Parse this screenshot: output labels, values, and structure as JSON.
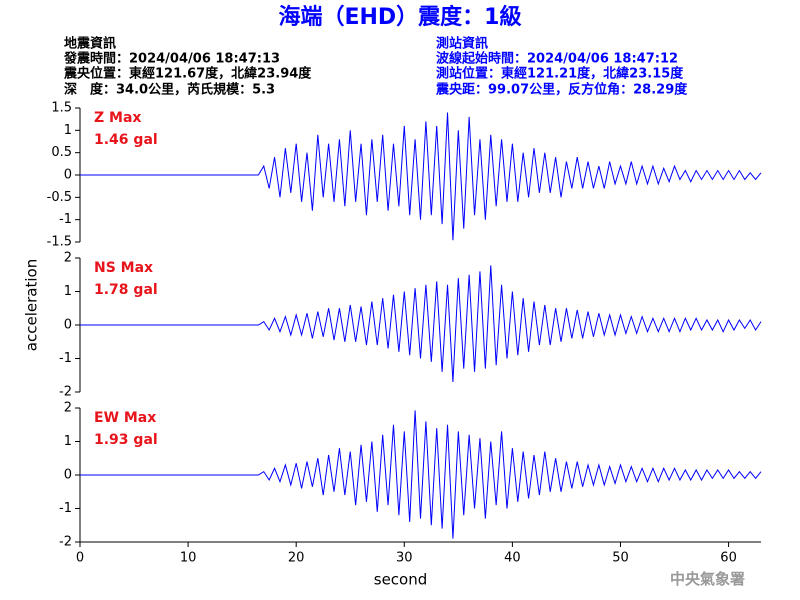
{
  "title": "海端（EHD）震度：1級",
  "event_info": {
    "heading": "地震資訊",
    "lines": [
      "發震時間：2024/04/06 18:47:13",
      "震央位置：東經121.67度，北緯23.94度",
      "深　度：34.0公里，芮氏規模：5.3"
    ]
  },
  "station_info": {
    "heading": "測站資訊",
    "lines": [
      "波線起始時間：2024/04/06 18:47:12",
      "測站位置：東經121.21度，北緯23.15度",
      "震央距：99.07公里，反方位角：28.29度"
    ]
  },
  "credit": "中央氣象署",
  "chart_data": [
    {
      "type": "line",
      "annotations": [
        "Z Max",
        "1.46 gal"
      ],
      "xlim": [
        0,
        63
      ],
      "ylim": [
        -1.5,
        1.5
      ],
      "yticks": [
        -1.5,
        -1,
        -0.5,
        0,
        0.5,
        1,
        1.5
      ],
      "x": [
        0,
        16.5,
        17,
        17.5,
        18,
        18.5,
        19,
        19.5,
        20,
        20.5,
        21,
        21.5,
        22,
        22.5,
        23,
        23.5,
        24,
        24.5,
        25,
        25.5,
        26,
        26.5,
        27,
        27.5,
        28,
        28.5,
        29,
        29.5,
        30,
        30.5,
        31,
        31.5,
        32,
        32.5,
        33,
        33.5,
        34,
        34.5,
        35,
        35.5,
        36,
        36.5,
        37,
        37.5,
        38,
        38.5,
        39,
        39.5,
        40,
        40.5,
        41,
        41.5,
        42,
        42.5,
        43,
        43.5,
        44,
        44.5,
        45,
        45.5,
        46,
        46.5,
        47,
        47.5,
        48,
        48.5,
        49,
        49.5,
        50,
        50.5,
        51,
        51.5,
        52,
        52.5,
        53,
        53.5,
        54,
        54.5,
        55,
        55.5,
        56,
        56.5,
        57,
        57.5,
        58,
        58.5,
        59,
        59.5,
        60,
        60.5,
        61,
        61.5,
        62,
        62.5,
        63
      ],
      "series": [
        {
          "color": "#0000ff",
          "values": [
            0,
            0,
            0.2,
            -0.3,
            0.4,
            -0.5,
            0.6,
            -0.4,
            0.7,
            -0.6,
            0.5,
            -0.8,
            0.9,
            -0.5,
            0.7,
            -0.6,
            0.8,
            -0.7,
            1.0,
            -0.6,
            0.7,
            -0.9,
            0.8,
            -0.6,
            0.9,
            -0.8,
            0.7,
            -0.7,
            1.1,
            -0.9,
            0.8,
            -1.0,
            1.2,
            -0.9,
            1.1,
            -1.1,
            1.4,
            -1.46,
            1.0,
            -1.2,
            1.3,
            -0.9,
            0.8,
            -1.0,
            0.9,
            -0.7,
            0.8,
            -0.6,
            0.7,
            -0.6,
            0.5,
            -0.5,
            0.6,
            -0.4,
            0.5,
            -0.4,
            0.4,
            -0.5,
            0.3,
            -0.3,
            0.4,
            -0.3,
            0.3,
            -0.3,
            0.2,
            -0.3,
            0.3,
            -0.2,
            0.2,
            -0.2,
            0.3,
            -0.2,
            0.2,
            -0.2,
            0.2,
            -0.2,
            0.15,
            -0.15,
            0.2,
            -0.1,
            0.1,
            -0.15,
            0.1,
            -0.1,
            0.1,
            -0.1,
            0.1,
            -0.1,
            0.1,
            -0.1,
            0.1,
            -0.1,
            0.05,
            -0.1,
            0.05
          ]
        }
      ]
    },
    {
      "type": "line",
      "annotations": [
        "NS Max",
        "1.78 gal"
      ],
      "y_label": "acceleration",
      "xlim": [
        0,
        63
      ],
      "ylim": [
        -2,
        2
      ],
      "yticks": [
        -2,
        -1,
        0,
        1,
        2
      ],
      "x": [
        0,
        16.5,
        17,
        17.5,
        18,
        18.5,
        19,
        19.5,
        20,
        20.5,
        21,
        21.5,
        22,
        22.5,
        23,
        23.5,
        24,
        24.5,
        25,
        25.5,
        26,
        26.5,
        27,
        27.5,
        28,
        28.5,
        29,
        29.5,
        30,
        30.5,
        31,
        31.5,
        32,
        32.5,
        33,
        33.5,
        34,
        34.5,
        35,
        35.5,
        36,
        36.5,
        37,
        37.5,
        38,
        38.5,
        39,
        39.5,
        40,
        40.5,
        41,
        41.5,
        42,
        42.5,
        43,
        43.5,
        44,
        44.5,
        45,
        45.5,
        46,
        46.5,
        47,
        47.5,
        48,
        48.5,
        49,
        49.5,
        50,
        50.5,
        51,
        51.5,
        52,
        52.5,
        53,
        53.5,
        54,
        54.5,
        55,
        55.5,
        56,
        56.5,
        57,
        57.5,
        58,
        58.5,
        59,
        59.5,
        60,
        60.5,
        61,
        61.5,
        62,
        62.5,
        63
      ],
      "series": [
        {
          "color": "#0000ff",
          "values": [
            0,
            0,
            0.1,
            -0.15,
            0.2,
            -0.2,
            0.25,
            -0.3,
            0.3,
            -0.3,
            0.35,
            -0.4,
            0.4,
            -0.35,
            0.5,
            -0.45,
            0.5,
            -0.5,
            0.6,
            -0.5,
            0.55,
            -0.6,
            0.7,
            -0.6,
            0.8,
            -0.7,
            0.9,
            -0.8,
            1.0,
            -0.9,
            1.1,
            -1.0,
            1.2,
            -1.1,
            1.3,
            -1.4,
            1.2,
            -1.7,
            1.4,
            -1.3,
            1.5,
            -1.4,
            1.6,
            -1.3,
            1.78,
            -1.2,
            1.2,
            -1.0,
            1.0,
            -0.9,
            0.8,
            -0.8,
            0.7,
            -0.6,
            0.6,
            -0.6,
            0.5,
            -0.5,
            0.5,
            -0.4,
            0.45,
            -0.4,
            0.4,
            -0.35,
            0.35,
            -0.3,
            0.3,
            -0.3,
            0.3,
            -0.25,
            0.25,
            -0.25,
            0.25,
            -0.2,
            0.2,
            -0.2,
            0.2,
            -0.2,
            0.2,
            -0.2,
            0.2,
            -0.15,
            0.2,
            -0.15,
            0.15,
            -0.15,
            0.15,
            -0.2,
            0.15,
            -0.15,
            0.15,
            -0.1,
            0.15,
            -0.15,
            0.1
          ]
        }
      ]
    },
    {
      "type": "line",
      "annotations": [
        "EW Max",
        "1.93 gal"
      ],
      "x_label": "second",
      "xlim": [
        0,
        63
      ],
      "xticks": [
        0,
        10,
        20,
        30,
        40,
        50,
        60
      ],
      "ylim": [
        -2,
        2
      ],
      "yticks": [
        -2,
        -1,
        0,
        1,
        2
      ],
      "x": [
        0,
        16.5,
        17,
        17.5,
        18,
        18.5,
        19,
        19.5,
        20,
        20.5,
        21,
        21.5,
        22,
        22.5,
        23,
        23.5,
        24,
        24.5,
        25,
        25.5,
        26,
        26.5,
        27,
        27.5,
        28,
        28.5,
        29,
        29.5,
        30,
        30.5,
        31,
        31.5,
        32,
        32.5,
        33,
        33.5,
        34,
        34.5,
        35,
        35.5,
        36,
        36.5,
        37,
        37.5,
        38,
        38.5,
        39,
        39.5,
        40,
        40.5,
        41,
        41.5,
        42,
        42.5,
        43,
        43.5,
        44,
        44.5,
        45,
        45.5,
        46,
        46.5,
        47,
        47.5,
        48,
        48.5,
        49,
        49.5,
        50,
        50.5,
        51,
        51.5,
        52,
        52.5,
        53,
        53.5,
        54,
        54.5,
        55,
        55.5,
        56,
        56.5,
        57,
        57.5,
        58,
        58.5,
        59,
        59.5,
        60,
        60.5,
        61,
        61.5,
        62,
        62.5,
        63
      ],
      "series": [
        {
          "color": "#0000ff",
          "values": [
            0,
            0,
            0.1,
            -0.15,
            0.2,
            -0.2,
            0.3,
            -0.3,
            0.35,
            -0.4,
            0.4,
            -0.35,
            0.5,
            -0.6,
            0.6,
            -0.5,
            0.8,
            -0.6,
            0.7,
            -0.9,
            0.9,
            -0.8,
            1.0,
            -1.1,
            1.2,
            -0.9,
            1.5,
            -1.2,
            1.3,
            -1.4,
            1.93,
            -1.3,
            1.6,
            -1.5,
            1.4,
            -1.6,
            1.5,
            -1.9,
            1.3,
            -1.2,
            1.2,
            -1.0,
            1.1,
            -1.3,
            1.0,
            -0.9,
            1.3,
            -1.0,
            0.8,
            -0.8,
            0.7,
            -0.7,
            0.6,
            -0.6,
            0.7,
            -0.5,
            0.5,
            -0.5,
            0.4,
            -0.4,
            0.4,
            -0.35,
            0.3,
            -0.3,
            0.3,
            -0.3,
            0.25,
            -0.25,
            0.3,
            -0.2,
            0.25,
            -0.2,
            0.2,
            -0.2,
            0.2,
            -0.2,
            0.2,
            -0.15,
            0.2,
            -0.15,
            0.15,
            -0.15,
            0.15,
            -0.15,
            0.15,
            -0.1,
            0.15,
            -0.1,
            0.15,
            -0.1,
            0.1,
            -0.1,
            0.1,
            -0.1,
            0.1
          ]
        }
      ]
    }
  ]
}
